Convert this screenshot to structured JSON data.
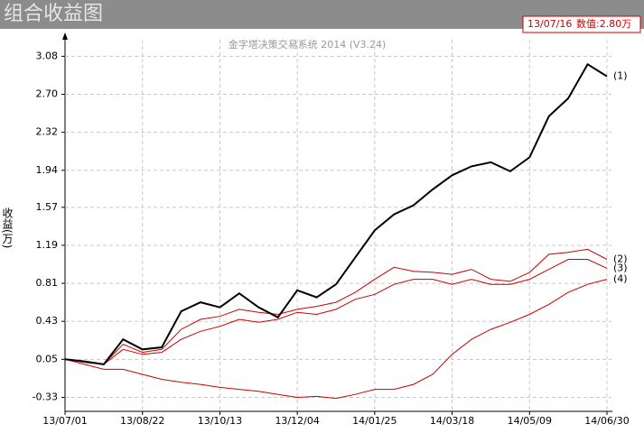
{
  "chart_data": {
    "type": "line",
    "title": "组合收益图",
    "subtitle": "金字塔决策交易系统 2014 (V3.24)",
    "y_label": "收益(万)",
    "readout": {
      "date": "13/07/16",
      "text": "数值:2.80万"
    },
    "x": [
      "13/07/01",
      "13/07/14",
      "13/07/27",
      "13/08/09",
      "13/08/22",
      "13/09/04",
      "13/09/17",
      "13/09/30",
      "13/10/13",
      "13/10/26",
      "13/11/08",
      "13/11/21",
      "13/12/04",
      "13/12/17",
      "13/12/30",
      "14/01/12",
      "14/01/25",
      "14/02/07",
      "14/02/20",
      "14/03/05",
      "14/03/18",
      "14/03/31",
      "14/04/13",
      "14/04/26",
      "14/05/09",
      "14/05/22",
      "14/06/04",
      "14/06/17",
      "14/06/30"
    ],
    "xlim": [
      "13/07/01",
      "14/06/30"
    ],
    "xticks": [
      "13/07/01",
      "13/08/22",
      "13/10/13",
      "13/12/04",
      "14/01/25",
      "14/03/18",
      "14/05/09",
      "14/06/30"
    ],
    "ylim": [
      -0.47,
      3.3
    ],
    "yticks": [
      3.08,
      {
        "value": 2.7,
        "label": "2.70"
      },
      2.32,
      1.94,
      1.57,
      1.19,
      0.81,
      0.43,
      0.05,
      -0.33
    ],
    "grid": true,
    "series": [
      {
        "name": "(1)",
        "color": "#000000",
        "values": [
          0.05,
          0.03,
          0.0,
          0.25,
          0.15,
          0.17,
          0.53,
          0.62,
          0.57,
          0.71,
          0.57,
          0.47,
          0.74,
          0.67,
          0.8,
          1.07,
          1.34,
          1.5,
          1.59,
          1.75,
          1.89,
          1.98,
          2.02,
          1.93,
          2.07,
          2.48,
          2.66,
          3.0,
          2.88
        ]
      },
      {
        "name": "(2)",
        "color": "#cc0000",
        "values": [
          0.05,
          0.03,
          0.0,
          0.2,
          0.12,
          0.15,
          0.35,
          0.45,
          0.48,
          0.55,
          0.52,
          0.5,
          0.55,
          0.58,
          0.62,
          0.72,
          0.85,
          0.97,
          0.93,
          0.92,
          0.9,
          0.95,
          0.85,
          0.83,
          0.92,
          1.1,
          1.12,
          1.15,
          1.05
        ]
      },
      {
        "name": "(3)",
        "color": "#cc0000",
        "values": [
          0.05,
          0.02,
          0.0,
          0.15,
          0.1,
          0.12,
          0.25,
          0.33,
          0.38,
          0.45,
          0.42,
          0.45,
          0.52,
          0.5,
          0.55,
          0.65,
          0.7,
          0.8,
          0.85,
          0.85,
          0.8,
          0.85,
          0.8,
          0.8,
          0.85,
          0.95,
          1.05,
          1.05,
          0.96
        ]
      },
      {
        "name": "(4)",
        "color": "#cc0000",
        "values": [
          0.05,
          0.0,
          -0.05,
          -0.05,
          -0.1,
          -0.15,
          -0.18,
          -0.2,
          -0.23,
          -0.25,
          -0.27,
          -0.3,
          -0.33,
          -0.32,
          -0.34,
          -0.3,
          -0.25,
          -0.25,
          -0.2,
          -0.1,
          0.1,
          0.25,
          0.35,
          0.42,
          0.5,
          0.6,
          0.72,
          0.8,
          0.85
        ]
      }
    ]
  }
}
